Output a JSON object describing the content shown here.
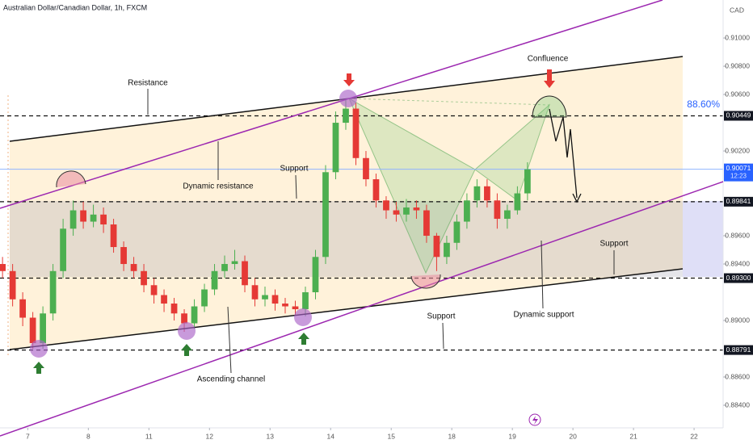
{
  "chart_data": {
    "type": "candlestick",
    "title": "Australian Dollar/Canadian Dollar, 1h, FXCM",
    "currency": "CAD",
    "up_color": "#4caf50",
    "down_color": "#e53935",
    "x": [
      -10,
      -6,
      -2,
      2,
      6,
      10,
      14,
      18,
      22,
      26,
      30,
      34,
      38,
      42,
      46,
      50,
      54,
      58,
      62,
      66,
      70,
      74,
      78,
      82,
      86,
      90,
      94,
      98,
      102,
      106,
      110,
      114,
      118,
      122,
      126,
      130,
      134,
      138,
      142,
      146,
      150,
      154,
      158,
      162,
      166,
      170,
      174,
      178,
      182,
      186,
      190,
      194,
      198
    ],
    "open": [
      0.894,
      0.8935,
      0.8915,
      0.8902,
      0.8884,
      0.8905,
      0.8935,
      0.8965,
      0.8978,
      0.897,
      0.8975,
      0.8968,
      0.8952,
      0.894,
      0.8935,
      0.8925,
      0.8918,
      0.8912,
      0.8905,
      0.8898,
      0.891,
      0.8922,
      0.8935,
      0.894,
      0.8942,
      0.8925,
      0.8915,
      0.8918,
      0.8912,
      0.891,
      0.8908,
      0.892,
      0.8945,
      0.9005,
      0.904,
      0.905,
      0.9015,
      0.9,
      0.8985,
      0.8978,
      0.8975,
      0.898,
      0.8978,
      0.896,
      0.8945,
      0.8955,
      0.897,
      0.8985,
      0.8995,
      0.8985,
      0.8972,
      0.8978,
      0.899
    ],
    "high": [
      0.8945,
      0.894,
      0.892,
      0.8906,
      0.891,
      0.894,
      0.8972,
      0.8985,
      0.8984,
      0.8982,
      0.898,
      0.8972,
      0.8956,
      0.8945,
      0.894,
      0.893,
      0.8922,
      0.8916,
      0.8908,
      0.8915,
      0.8926,
      0.894,
      0.8946,
      0.895,
      0.8946,
      0.893,
      0.8924,
      0.8922,
      0.8916,
      0.8914,
      0.8924,
      0.895,
      0.901,
      0.9048,
      0.9057,
      0.9054,
      0.902,
      0.9004,
      0.8988,
      0.8984,
      0.8986,
      0.8985,
      0.8982,
      0.8962,
      0.896,
      0.8975,
      0.899,
      0.9,
      0.9,
      0.899,
      0.8982,
      0.8995,
      0.9012
    ],
    "low": [
      0.893,
      0.891,
      0.8896,
      0.888,
      0.888,
      0.89,
      0.893,
      0.896,
      0.8965,
      0.8966,
      0.8962,
      0.8948,
      0.8935,
      0.893,
      0.892,
      0.8912,
      0.8906,
      0.89,
      0.8892,
      0.8894,
      0.8906,
      0.8918,
      0.893,
      0.8936,
      0.892,
      0.891,
      0.891,
      0.8907,
      0.8905,
      0.8904,
      0.8903,
      0.8915,
      0.894,
      0.9,
      0.9035,
      0.901,
      0.8995,
      0.898,
      0.8972,
      0.897,
      0.897,
      0.8972,
      0.8955,
      0.8935,
      0.894,
      0.895,
      0.8965,
      0.898,
      0.898,
      0.8965,
      0.8965,
      0.8975,
      0.8985
    ],
    "close": [
      0.8935,
      0.8915,
      0.8902,
      0.8884,
      0.8905,
      0.8935,
      0.8965,
      0.8978,
      0.897,
      0.8975,
      0.8968,
      0.8952,
      0.894,
      0.8935,
      0.8925,
      0.8918,
      0.8912,
      0.8905,
      0.8898,
      0.891,
      0.8922,
      0.8935,
      0.894,
      0.8942,
      0.8925,
      0.8915,
      0.8918,
      0.8912,
      0.891,
      0.8908,
      0.892,
      0.8945,
      0.9005,
      0.904,
      0.905,
      0.9015,
      0.9,
      0.8985,
      0.8978,
      0.8975,
      0.898,
      0.8978,
      0.896,
      0.8945,
      0.8955,
      0.897,
      0.8985,
      0.8995,
      0.8985,
      0.8972,
      0.8978,
      0.899,
      0.90071
    ],
    "xlim": [
      -11,
      275.5
    ],
    "xticks": [
      {
        "value": 0,
        "label": "7"
      },
      {
        "value": 24,
        "label": "8"
      },
      {
        "value": 48,
        "label": "11"
      },
      {
        "value": 72,
        "label": "12"
      },
      {
        "value": 96,
        "label": "13"
      },
      {
        "value": 120,
        "label": "14"
      },
      {
        "value": 144,
        "label": "15"
      },
      {
        "value": 168,
        "label": "18"
      },
      {
        "value": 192,
        "label": "19"
      },
      {
        "value": 216,
        "label": "20"
      },
      {
        "value": 240,
        "label": "21"
      },
      {
        "value": 264,
        "label": "22"
      }
    ],
    "ylim": [
      0.8824,
      0.91269
    ],
    "yticks": [
      {
        "value": 0.91,
        "label": "0.91000"
      },
      {
        "value": 0.908,
        "label": "0.90800"
      },
      {
        "value": 0.906,
        "label": "0.90600"
      },
      {
        "value": 0.902,
        "label": "0.90200"
      },
      {
        "value": 0.896,
        "label": "0.89600"
      },
      {
        "value": 0.894,
        "label": "0.89400"
      },
      {
        "value": 0.89,
        "label": "0.89000"
      },
      {
        "value": 0.886,
        "label": "0.88600"
      },
      {
        "value": 0.884,
        "label": "0.88400"
      }
    ],
    "price_levels": [
      {
        "value": 0.90449,
        "label": "0.90449"
      },
      {
        "value": 0.89841,
        "label": "0.89841"
      },
      {
        "value": 0.893,
        "label": "0.89300"
      },
      {
        "value": 0.88791,
        "label": "0.88791"
      }
    ],
    "current_price": {
      "value": 0.90071,
      "label": "0.90071",
      "countdown": "12:23"
    },
    "fib_label": "88.60%",
    "annotations": [
      "Resistance",
      "Dynamic resistance",
      "Support",
      "Confluence",
      "Support",
      "Dynamic support",
      "Support",
      "Ascending channel"
    ]
  }
}
